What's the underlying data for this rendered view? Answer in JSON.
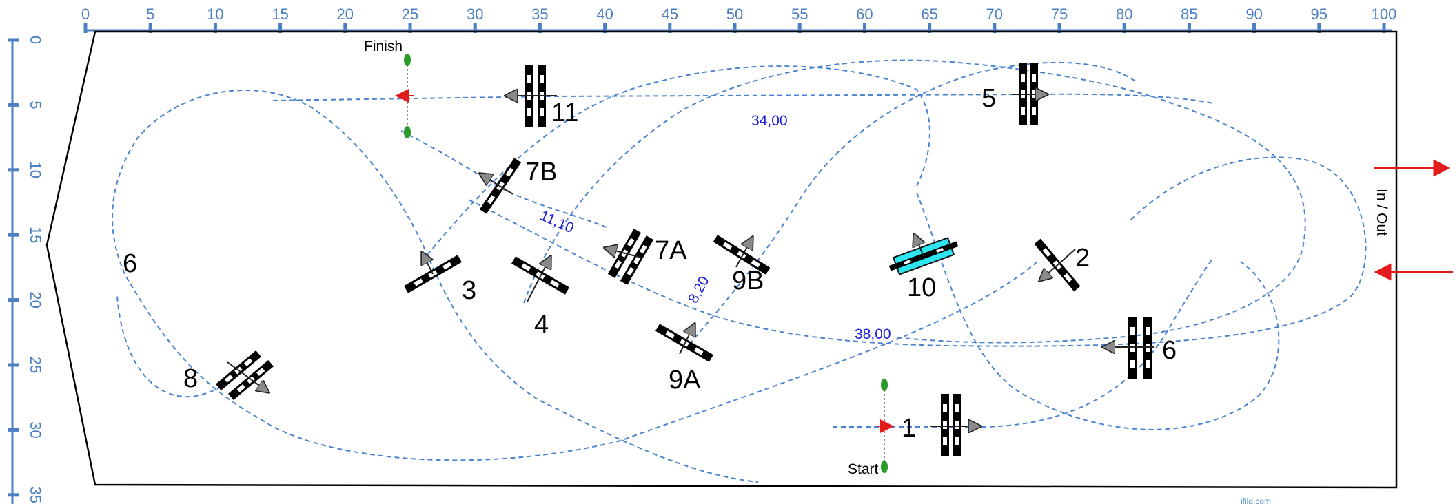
{
  "scale_x": {
    "ticks": [
      "0",
      "5",
      "10",
      "15",
      "20",
      "25",
      "30",
      "35",
      "40",
      "45",
      "50",
      "55",
      "60",
      "65",
      "70",
      "75",
      "80",
      "85",
      "90",
      "95",
      "100"
    ]
  },
  "scale_y": {
    "ticks": [
      "0",
      "5",
      "10",
      "15",
      "20",
      "25",
      "30",
      "35"
    ]
  },
  "obstacles": [
    {
      "id": "1",
      "label": "1"
    },
    {
      "id": "2",
      "label": "2"
    },
    {
      "id": "3",
      "label": "3"
    },
    {
      "id": "4",
      "label": "4"
    },
    {
      "id": "5",
      "label": "5"
    },
    {
      "id": "6a",
      "label": "6"
    },
    {
      "id": "6b",
      "label": "6"
    },
    {
      "id": "7A",
      "label": "7A"
    },
    {
      "id": "7B",
      "label": "7B"
    },
    {
      "id": "8",
      "label": "8"
    },
    {
      "id": "9A",
      "label": "9A"
    },
    {
      "id": "9B",
      "label": "9B"
    },
    {
      "id": "10",
      "label": "10"
    },
    {
      "id": "11",
      "label": "11"
    }
  ],
  "distances": [
    "34,00",
    "11,10",
    "8,20",
    "38,00"
  ],
  "start_label": "Start",
  "finish_label": "Finish",
  "entrance_label": "In / Out",
  "footer_text": "ifild.com",
  "colors": {
    "scale": "#4a7fc1",
    "path": "#4a84d0",
    "distance": "#1a1adb",
    "arrow": "#e21b1b",
    "water": "#2ee6f0",
    "flag": "#2a9a2a"
  }
}
